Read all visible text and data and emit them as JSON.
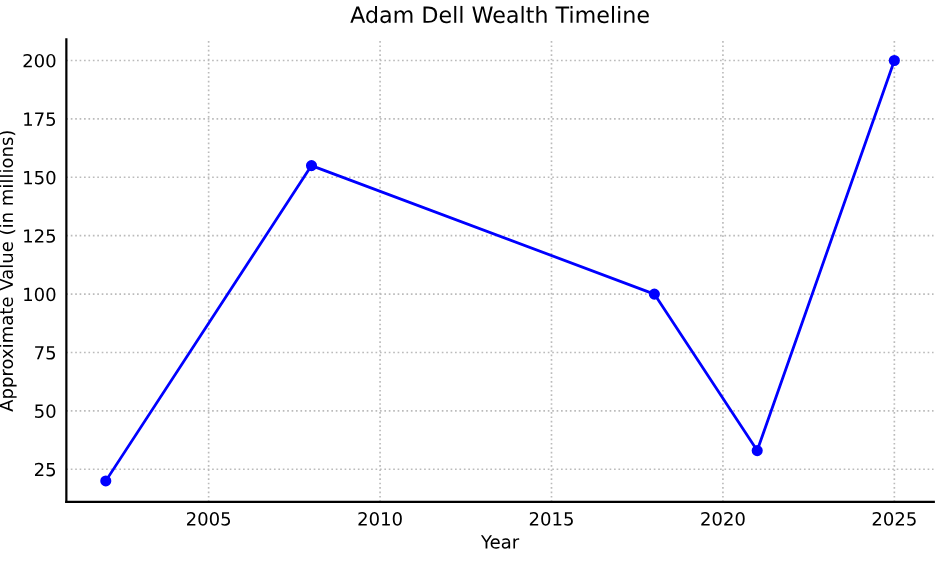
{
  "chart_data": {
    "type": "line",
    "title": "Adam Dell Wealth Timeline",
    "xlabel": "Year",
    "ylabel": "Approximate Value (in millions)",
    "x": [
      2002,
      2008,
      2018,
      2021,
      2025
    ],
    "series": [
      {
        "color": "#0000ff",
        "values": [
          20,
          155,
          100,
          33,
          200
        ]
      }
    ],
    "xlim": [
      2000.85,
      2026.15
    ],
    "xticks": [
      2005,
      2010,
      2015,
      2020,
      2025
    ],
    "ylim": [
      11,
      209
    ],
    "yticks": [
      25,
      50,
      75,
      100,
      125,
      150,
      175,
      200
    ],
    "grid": true,
    "marker": "circle",
    "line_style": "solid"
  }
}
